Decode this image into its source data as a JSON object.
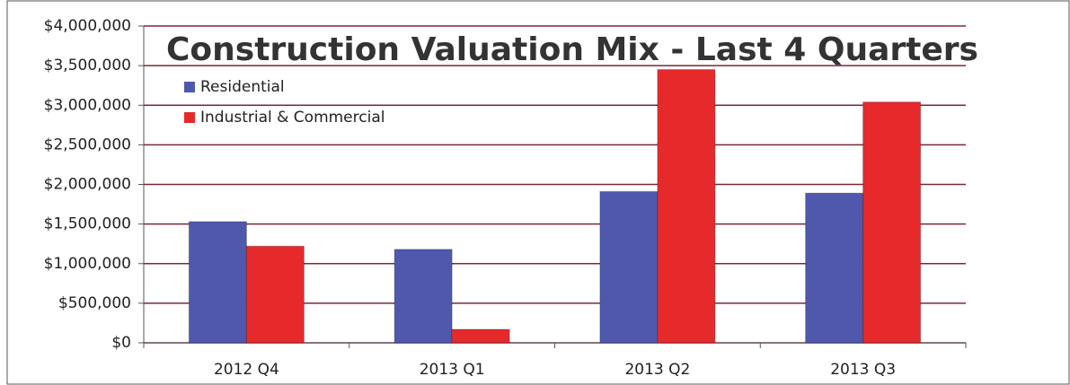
{
  "chart_data": {
    "type": "bar",
    "title": "Construction Valuation Mix - Last 4 Quarters",
    "categories": [
      "2012 Q4",
      "2013 Q1",
      "2013 Q2",
      "2013 Q3"
    ],
    "series": [
      {
        "name": "Residential",
        "color": "#4f58ad",
        "values": [
          1530000,
          1180000,
          1910000,
          1890000
        ]
      },
      {
        "name": "Industrial & Commercial",
        "color": "#e62a2c",
        "values": [
          1220000,
          170000,
          3450000,
          3040000
        ]
      }
    ],
    "ylim": [
      0,
      4000000
    ],
    "yticks": [
      {
        "value": 0,
        "label": "$0"
      },
      {
        "value": 500000,
        "label": "$500,000"
      },
      {
        "value": 1000000,
        "label": "$1,000,000"
      },
      {
        "value": 1500000,
        "label": "$1,500,000"
      },
      {
        "value": 2000000,
        "label": "$2,000,000"
      },
      {
        "value": 2500000,
        "label": "$2,500,000"
      },
      {
        "value": 3000000,
        "label": "$3,000,000"
      },
      {
        "value": 3500000,
        "label": "$3,500,000"
      },
      {
        "value": 4000000,
        "label": "$4,000,000"
      }
    ],
    "grid": true,
    "legend": "upper left"
  }
}
